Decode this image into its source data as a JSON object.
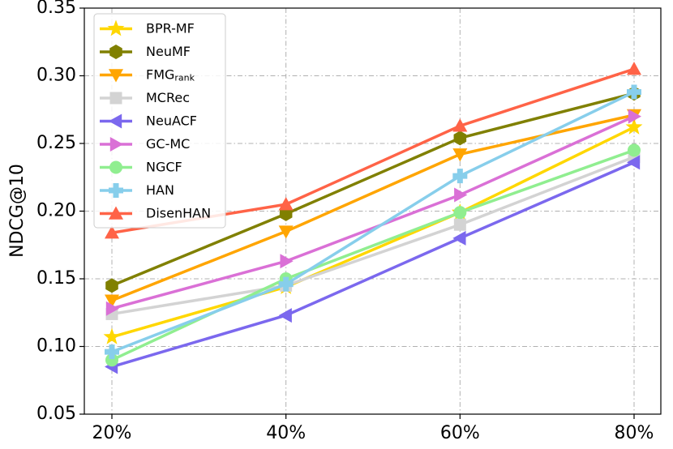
{
  "chart_data": {
    "type": "line",
    "title": "",
    "xlabel": "",
    "ylabel": "NDCG@10",
    "categories": [
      "20%",
      "40%",
      "60%",
      "80%"
    ],
    "ylim": [
      0.05,
      0.35
    ],
    "yticks": [
      "0.05",
      "0.10",
      "0.15",
      "0.20",
      "0.25",
      "0.30",
      "0.35"
    ],
    "grid": true,
    "legend_position": "top-left",
    "series": [
      {
        "name": "BPR-MF",
        "marker": "star",
        "color": "#ffd700",
        "values": [
          0.107,
          0.144,
          0.199,
          0.262
        ]
      },
      {
        "name": "NeuMF",
        "marker": "hexagon",
        "color": "#808000",
        "values": [
          0.145,
          0.198,
          0.254,
          0.287
        ]
      },
      {
        "name": "FMG",
        "name_sub": "rank",
        "marker": "triangle-down",
        "color": "#ffa500",
        "values": [
          0.134,
          0.185,
          0.242,
          0.271
        ]
      },
      {
        "name": "MCRec",
        "marker": "square",
        "color": "#d3d3d3",
        "values": [
          0.124,
          0.145,
          0.19,
          0.24
        ]
      },
      {
        "name": "NeuACF",
        "marker": "triangle-left",
        "color": "#7b68ee",
        "values": [
          0.085,
          0.123,
          0.18,
          0.236
        ]
      },
      {
        "name": "GC-MC",
        "marker": "triangle-right",
        "color": "#da70d6",
        "values": [
          0.128,
          0.163,
          0.212,
          0.27
        ]
      },
      {
        "name": "NGCF",
        "marker": "circle",
        "color": "#90ee90",
        "values": [
          0.09,
          0.15,
          0.199,
          0.245
        ]
      },
      {
        "name": "HAN",
        "marker": "plus",
        "color": "#87ceeb",
        "values": [
          0.096,
          0.146,
          0.226,
          0.288
        ]
      },
      {
        "name": "DisenHAN",
        "marker": "triangle-up",
        "color": "#ff6347",
        "values": [
          0.184,
          0.205,
          0.263,
          0.305
        ]
      }
    ]
  }
}
